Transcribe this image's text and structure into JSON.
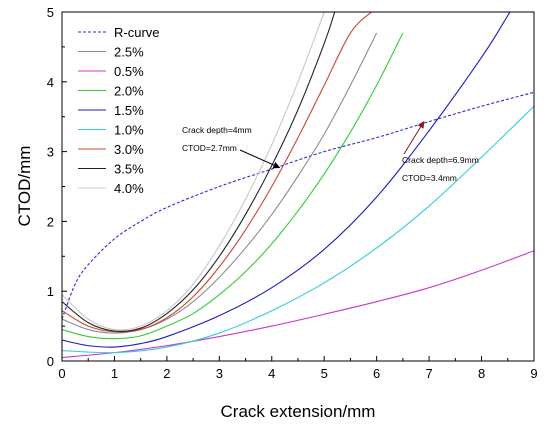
{
  "chart_data": {
    "type": "line",
    "title": "",
    "xlabel": "Crack extension/mm",
    "ylabel": "CTOD/mm",
    "xlim": [
      0,
      9
    ],
    "ylim": [
      0,
      5
    ],
    "xticks": [
      "0",
      "1",
      "2",
      "3",
      "4",
      "5",
      "6",
      "7",
      "8",
      "9"
    ],
    "yticks": [
      "0",
      "1",
      "2",
      "3",
      "4",
      "5"
    ],
    "grid": false,
    "legend_position": "top-left",
    "series": [
      {
        "name": "R-curve",
        "color": "#2b2bd8",
        "style": "dashed",
        "x": [
          0,
          0.25,
          0.5,
          1,
          1.5,
          2,
          3,
          4,
          5,
          6,
          7,
          8,
          9
        ],
        "y": [
          0.6,
          1.1,
          1.38,
          1.75,
          2.0,
          2.2,
          2.5,
          2.75,
          3.0,
          3.2,
          3.43,
          3.65,
          3.85
        ]
      },
      {
        "name": "2.5%",
        "color": "#8c8c8c",
        "style": "solid",
        "x": [
          0,
          0.5,
          1,
          1.5,
          2,
          2.5,
          3,
          3.5,
          4,
          4.5,
          5,
          5.5,
          6
        ],
        "y": [
          0.6,
          0.45,
          0.4,
          0.45,
          0.6,
          0.85,
          1.2,
          1.62,
          2.1,
          2.65,
          3.25,
          3.95,
          4.7
        ]
      },
      {
        "name": "0.5%",
        "color": "#cc33cc",
        "style": "solid",
        "x": [
          0,
          1,
          2,
          3,
          4,
          5,
          6,
          7,
          8,
          9
        ],
        "y": [
          0.05,
          0.12,
          0.22,
          0.35,
          0.5,
          0.67,
          0.85,
          1.05,
          1.3,
          1.58
        ]
      },
      {
        "name": "2.0%",
        "color": "#33cc33",
        "style": "solid",
        "x": [
          0,
          0.5,
          1,
          1.5,
          2,
          2.5,
          3,
          3.5,
          4,
          4.5,
          5,
          5.5,
          6,
          6.5
        ],
        "y": [
          0.45,
          0.35,
          0.32,
          0.36,
          0.5,
          0.68,
          0.95,
          1.28,
          1.68,
          2.15,
          2.68,
          3.28,
          3.95,
          4.7
        ]
      },
      {
        "name": "1.5%",
        "color": "#1c1cbf",
        "style": "solid",
        "x": [
          0,
          0.5,
          1,
          1.5,
          2,
          3,
          4,
          5,
          6,
          7,
          8,
          8.5,
          9
        ],
        "y": [
          0.3,
          0.22,
          0.2,
          0.25,
          0.35,
          0.65,
          1.05,
          1.6,
          2.35,
          3.3,
          4.35,
          4.95,
          5.6
        ]
      },
      {
        "name": "1.0%",
        "color": "#33ccdd",
        "style": "solid",
        "x": [
          0,
          1,
          2,
          3,
          4,
          5,
          6,
          7,
          8,
          9
        ],
        "y": [
          0.15,
          0.12,
          0.2,
          0.4,
          0.72,
          1.12,
          1.62,
          2.22,
          2.92,
          3.65
        ]
      },
      {
        "name": "3.0%",
        "color": "#cc4433",
        "style": "solid",
        "x": [
          0,
          0.5,
          1,
          1.5,
          2,
          2.5,
          3,
          3.5,
          4,
          4.5,
          5,
          5.5,
          5.9
        ],
        "y": [
          0.72,
          0.5,
          0.42,
          0.45,
          0.62,
          0.92,
          1.35,
          1.88,
          2.5,
          3.2,
          3.95,
          4.7,
          5.0
        ]
      },
      {
        "name": "3.5%",
        "color": "#222222",
        "style": "solid",
        "x": [
          0,
          0.5,
          1,
          1.5,
          2,
          2.5,
          3,
          3.5,
          4,
          4.5,
          5,
          5.2
        ],
        "y": [
          0.85,
          0.55,
          0.43,
          0.47,
          0.68,
          1.02,
          1.5,
          2.1,
          2.8,
          3.6,
          4.55,
          5.0
        ]
      },
      {
        "name": "4.0%",
        "color": "#c8c8c8",
        "style": "solid",
        "x": [
          0,
          0.5,
          1,
          1.5,
          2,
          2.5,
          3,
          3.5,
          4,
          4.5,
          5
        ],
        "y": [
          0.95,
          0.6,
          0.45,
          0.5,
          0.72,
          1.1,
          1.65,
          2.32,
          3.1,
          4.0,
          5.0
        ]
      }
    ],
    "annotations": [
      {
        "lines": [
          "Crack depth=4mm",
          "CTOD=2.7mm"
        ],
        "point": [
          4.15,
          2.77
        ]
      },
      {
        "lines": [
          "Crack depth=6.9mm",
          "CTOD=3.4mm"
        ],
        "point": [
          6.9,
          3.43
        ]
      }
    ]
  }
}
